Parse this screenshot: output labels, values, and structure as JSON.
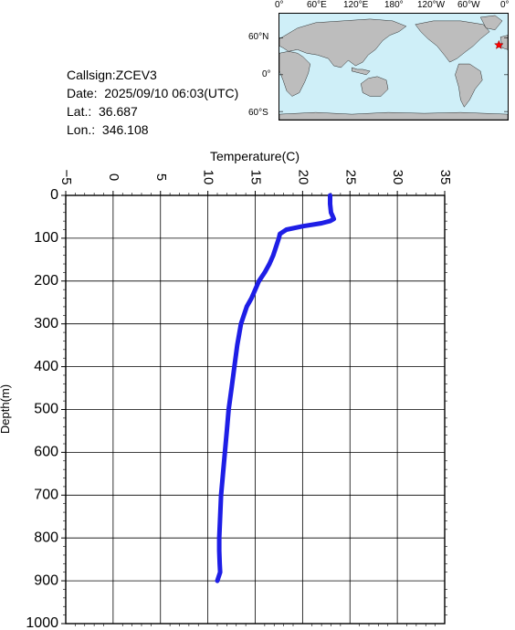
{
  "info": {
    "callsign": "Callsign:ZCEV3",
    "date": "Date:  2025/09/10 06:03(UTC)",
    "lat": "Lat.:  36.687",
    "lon": "Lon.:  346.108"
  },
  "map": {
    "lon_labels": [
      "0°",
      "60°E",
      "120°E",
      "180°",
      "120°W",
      "60°W",
      "0°"
    ],
    "lat_labels": [
      "60°N",
      "0°",
      "60°S"
    ],
    "marker": {
      "lat": 36.687,
      "lon": 346.108,
      "color": "#ff0000"
    },
    "colors": {
      "ocean": "#cfeff8",
      "land": "#bdbdbd"
    }
  },
  "chart_data": {
    "type": "line",
    "title": "",
    "xlabel": "Temperature(C)",
    "ylabel": "Depth(m)",
    "xlim": [
      -5,
      35
    ],
    "ylim": [
      1000,
      0
    ],
    "x_ticks": [
      -5,
      0,
      5,
      10,
      15,
      20,
      25,
      30,
      35
    ],
    "y_ticks": [
      0,
      100,
      200,
      300,
      400,
      500,
      600,
      700,
      800,
      900,
      1000
    ],
    "grid": true,
    "color": "#1e1ee6",
    "series": [
      {
        "x": [
          22.9,
          22.9,
          23.0,
          23.2,
          23.3,
          22.9,
          22.0,
          20.0,
          18.3,
          17.6,
          17.5,
          17.2,
          16.9,
          16.5,
          16.0,
          15.4,
          15.0,
          14.6,
          14.1,
          13.5,
          13.1,
          12.8,
          12.5,
          12.2,
          12.0,
          11.8,
          11.6,
          11.4,
          11.3,
          11.2,
          11.2,
          11.25,
          11.3,
          11.0
        ],
        "y": [
          0,
          20,
          40,
          50,
          55,
          60,
          65,
          72,
          80,
          90,
          100,
          120,
          140,
          160,
          180,
          200,
          220,
          240,
          260,
          300,
          350,
          400,
          450,
          500,
          550,
          600,
          650,
          700,
          750,
          800,
          830,
          860,
          880,
          900
        ]
      }
    ]
  }
}
